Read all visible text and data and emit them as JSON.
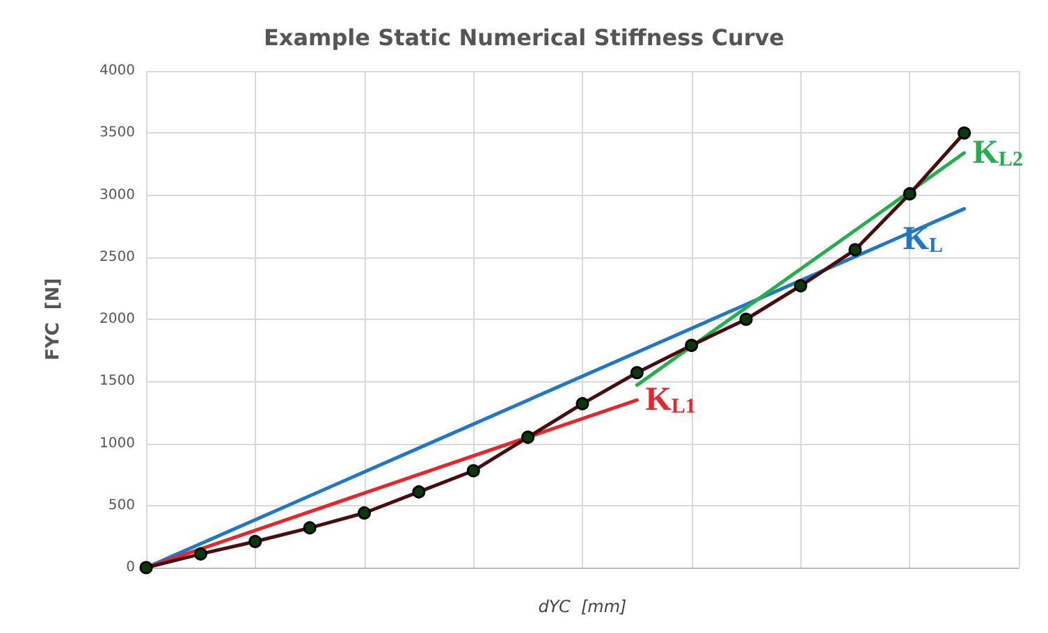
{
  "chart_data": {
    "type": "line",
    "title": "Example Static Numerical Stiffness Curve",
    "xlabel": "dYC  [mm]",
    "ylabel": "FYC  [N]",
    "categories": [
      null,
      null,
      null,
      null,
      null,
      null,
      null,
      null,
      null,
      null,
      null,
      null,
      null,
      null,
      null,
      null,
      null
    ],
    "series": [
      {
        "color": "#4a0d0d",
        "values": [
          0,
          110,
          210,
          320,
          440,
          610,
          780,
          1050,
          1320,
          1570,
          1790,
          2000,
          2270,
          2560,
          3010,
          3500,
          null
        ]
      },
      {
        "name": "K$_{L}$",
        "color": "#1f77c8",
        "marker": "none",
        "values": [
          0,
          null,
          null,
          null,
          null,
          null,
          null,
          null,
          null,
          null,
          null,
          null,
          null,
          null,
          null,
          2890,
          null
        ]
      },
      {
        "name": "K$_{L1}$",
        "color": "#e8262a",
        "marker": "none",
        "values": [
          0,
          null,
          null,
          null,
          null,
          null,
          null,
          null,
          null,
          1350,
          null,
          null,
          null,
          null,
          null,
          null,
          null
        ]
      },
      {
        "name": "K$_{L2}$",
        "color": "#22b04b",
        "marker": "none",
        "values": [
          null,
          null,
          null,
          null,
          null,
          null,
          null,
          null,
          null,
          1470,
          null,
          null,
          null,
          null,
          null,
          3340,
          null
        ]
      }
    ],
    "ylim": [
      0,
      4000
    ],
    "yticks": [
      0,
      500,
      1000,
      1500,
      2000,
      2500,
      3000,
      3500,
      4000
    ],
    "grid": true,
    "legend": false,
    "marker": "circle",
    "line_style": "solid",
    "tick_labels": "y"
  }
}
